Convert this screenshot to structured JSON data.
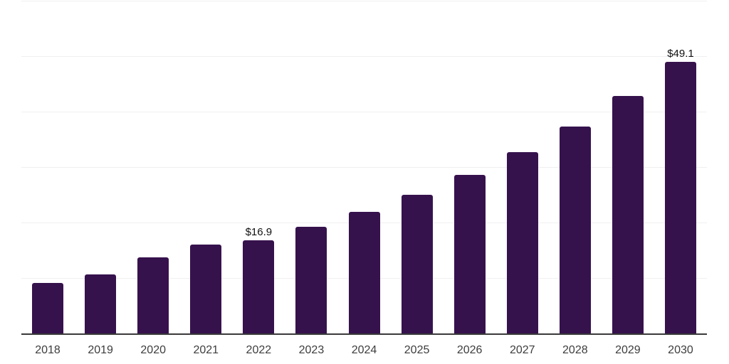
{
  "chart_data": {
    "type": "bar",
    "title": "",
    "xlabel": "",
    "ylabel": "",
    "categories": [
      "2018",
      "2019",
      "2020",
      "2021",
      "2022",
      "2023",
      "2024",
      "2025",
      "2026",
      "2027",
      "2028",
      "2029",
      "2030"
    ],
    "values": [
      9.2,
      10.8,
      13.9,
      16.2,
      16.9,
      19.3,
      22.1,
      25.1,
      28.7,
      32.8,
      37.4,
      43.0,
      49.1
    ],
    "data_labels": [
      {
        "category": "2022",
        "text": "$16.9"
      },
      {
        "category": "2030",
        "text": "$49.1"
      }
    ],
    "value_prefix": "$",
    "ylim": [
      0,
      60
    ],
    "gridline_step": 10,
    "grid": "horizontal",
    "legend": "none",
    "colors": {
      "bar": "#36124d",
      "axis_line": "#3a3a3a",
      "gridline": "#f0f0f0",
      "tick_label": "#3d3d3d",
      "data_label": "#111111",
      "background": "#ffffff"
    }
  }
}
